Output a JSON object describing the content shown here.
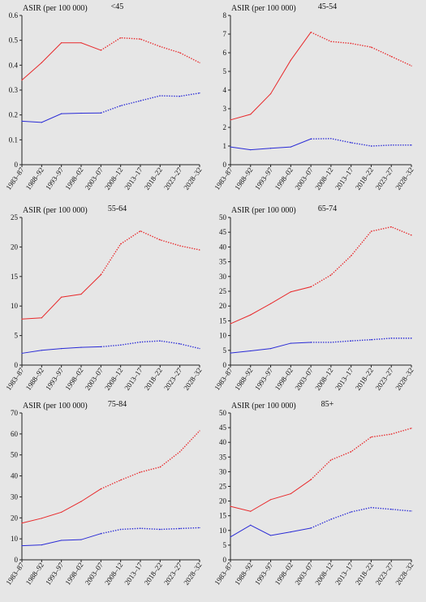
{
  "figure": {
    "colors": {
      "background": "#e6e6e6",
      "axis": "#222222",
      "red": "#e8292b",
      "blue": "#2a2bd6"
    }
  },
  "chart_data": [
    {
      "type": "line",
      "title": "<45",
      "ylabel": "ASIR (per 100 000)",
      "xlabel": "",
      "categories": [
        "1983–87",
        "1988–92",
        "1993–97",
        "1998–02",
        "2003–07",
        "2008–12",
        "2013–17",
        "2018–22",
        "2023–27",
        "2028–32"
      ],
      "ylim": [
        0,
        0.6
      ],
      "yticks": [
        0,
        0.1,
        0.2,
        0.3,
        0.4,
        0.5,
        0.6
      ],
      "ytick_labels": [
        "0",
        "0.1",
        "0.2",
        "0.3",
        "0.4",
        "0.5",
        "0.6"
      ],
      "observed_until_index": 4,
      "series": [
        {
          "color": "#e8292b",
          "values": [
            0.34,
            0.41,
            0.49,
            0.49,
            0.46,
            0.51,
            0.505,
            0.475,
            0.45,
            0.41
          ]
        },
        {
          "color": "#2a2bd6",
          "values": [
            0.175,
            0.17,
            0.205,
            0.207,
            0.208,
            0.237,
            0.257,
            0.277,
            0.275,
            0.288
          ]
        }
      ]
    },
    {
      "type": "line",
      "title": "45-54",
      "ylabel": "ASIR (per 100 000)",
      "xlabel": "",
      "categories": [
        "1983–87",
        "1988–92",
        "1993–97",
        "1998–02",
        "2003–07",
        "2008–12",
        "2013–17",
        "2018–22",
        "2023–27",
        "2028–32"
      ],
      "ylim": [
        0,
        8
      ],
      "yticks": [
        0,
        1,
        2,
        3,
        4,
        5,
        6,
        7,
        8
      ],
      "ytick_labels": [
        "0",
        "1",
        "2",
        "3",
        "4",
        "5",
        "6",
        "7",
        "8"
      ],
      "observed_until_index": 4,
      "series": [
        {
          "color": "#e8292b",
          "values": [
            2.4,
            2.7,
            3.8,
            5.6,
            7.1,
            6.6,
            6.5,
            6.3,
            5.8,
            5.3
          ]
        },
        {
          "color": "#2a2bd6",
          "values": [
            0.95,
            0.8,
            0.88,
            0.95,
            1.38,
            1.4,
            1.18,
            1.0,
            1.05,
            1.05
          ]
        }
      ]
    },
    {
      "type": "line",
      "title": "55-64",
      "ylabel": "ASIR (per 100 000)",
      "xlabel": "",
      "categories": [
        "1983–87",
        "1988–92",
        "1993–97",
        "1998–02",
        "2003–07",
        "2008–12",
        "2013–17",
        "2018–22",
        "2023–27",
        "2028–32"
      ],
      "ylim": [
        0,
        25
      ],
      "yticks": [
        0,
        5,
        10,
        15,
        20,
        25
      ],
      "ytick_labels": [
        "0",
        "5",
        "10",
        "15",
        "20",
        "25"
      ],
      "observed_until_index": 4,
      "series": [
        {
          "color": "#e8292b",
          "values": [
            7.8,
            8.0,
            11.5,
            12.0,
            15.3,
            20.5,
            22.7,
            21.2,
            20.2,
            19.5
          ]
        },
        {
          "color": "#2a2bd6",
          "values": [
            2.0,
            2.5,
            2.8,
            3.0,
            3.1,
            3.4,
            3.9,
            4.1,
            3.6,
            2.8
          ]
        }
      ]
    },
    {
      "type": "line",
      "title": "65-74",
      "ylabel": "ASIR (per 100 000)",
      "xlabel": "",
      "categories": [
        "1983–87",
        "1988–92",
        "1993–97",
        "1998–02",
        "2003–07",
        "2008–12",
        "2013–17",
        "2018–22",
        "2023–27",
        "2028–32"
      ],
      "ylim": [
        0,
        50
      ],
      "yticks": [
        0,
        5,
        10,
        15,
        20,
        25,
        30,
        35,
        40,
        45,
        50
      ],
      "ytick_labels": [
        "0",
        "5",
        "10",
        "15",
        "20",
        "25",
        "30",
        "35",
        "40",
        "45",
        "50"
      ],
      "observed_until_index": 4,
      "series": [
        {
          "color": "#e8292b",
          "values": [
            14.0,
            17.0,
            20.8,
            24.8,
            26.5,
            30.5,
            37.0,
            45.3,
            46.8,
            44.0
          ]
        },
        {
          "color": "#2a2bd6",
          "values": [
            4.1,
            4.8,
            5.6,
            7.4,
            7.7,
            7.7,
            8.2,
            8.6,
            9.1,
            9.1
          ]
        }
      ]
    },
    {
      "type": "line",
      "title": "75-84",
      "ylabel": "ASIR (per 100 000)",
      "xlabel": "",
      "categories": [
        "1983–87",
        "1988–92",
        "1993–97",
        "1998–02",
        "2003–07",
        "2008–12",
        "2013–17",
        "2018–22",
        "2023–27",
        "2028–32"
      ],
      "ylim": [
        0,
        70
      ],
      "yticks": [
        0,
        10,
        20,
        30,
        40,
        50,
        60,
        70
      ],
      "ytick_labels": [
        "0",
        "10",
        "20",
        "30",
        "40",
        "50",
        "60",
        "70"
      ],
      "observed_until_index": 4,
      "series": [
        {
          "color": "#e8292b",
          "values": [
            17.5,
            19.8,
            22.7,
            27.8,
            33.8,
            38.0,
            41.8,
            44.2,
            51.5,
            61.5
          ]
        },
        {
          "color": "#2a2bd6",
          "values": [
            6.7,
            7.1,
            9.3,
            9.6,
            12.5,
            14.5,
            15.0,
            14.5,
            14.9,
            15.3
          ]
        }
      ]
    },
    {
      "type": "line",
      "title": "85+",
      "ylabel": "ASIR (per 100 000)",
      "xlabel": "",
      "categories": [
        "1983–87",
        "1988–92",
        "1993–97",
        "1998–02",
        "2003–07",
        "2008–12",
        "2013–17",
        "2018–22",
        "2023–27",
        "2028–32"
      ],
      "ylim": [
        0,
        50
      ],
      "yticks": [
        0,
        5,
        10,
        15,
        20,
        25,
        30,
        35,
        40,
        45,
        50
      ],
      "ytick_labels": [
        "0",
        "5",
        "10",
        "15",
        "20",
        "25",
        "30",
        "35",
        "40",
        "45",
        "50"
      ],
      "observed_until_index": 4,
      "series": [
        {
          "color": "#e8292b",
          "values": [
            18.2,
            16.5,
            20.5,
            22.5,
            27.3,
            34.0,
            36.8,
            41.8,
            42.8,
            44.8
          ]
        },
        {
          "color": "#2a2bd6",
          "values": [
            7.8,
            11.8,
            8.3,
            9.5,
            10.8,
            13.8,
            16.3,
            17.8,
            17.2,
            16.6
          ]
        }
      ]
    }
  ]
}
